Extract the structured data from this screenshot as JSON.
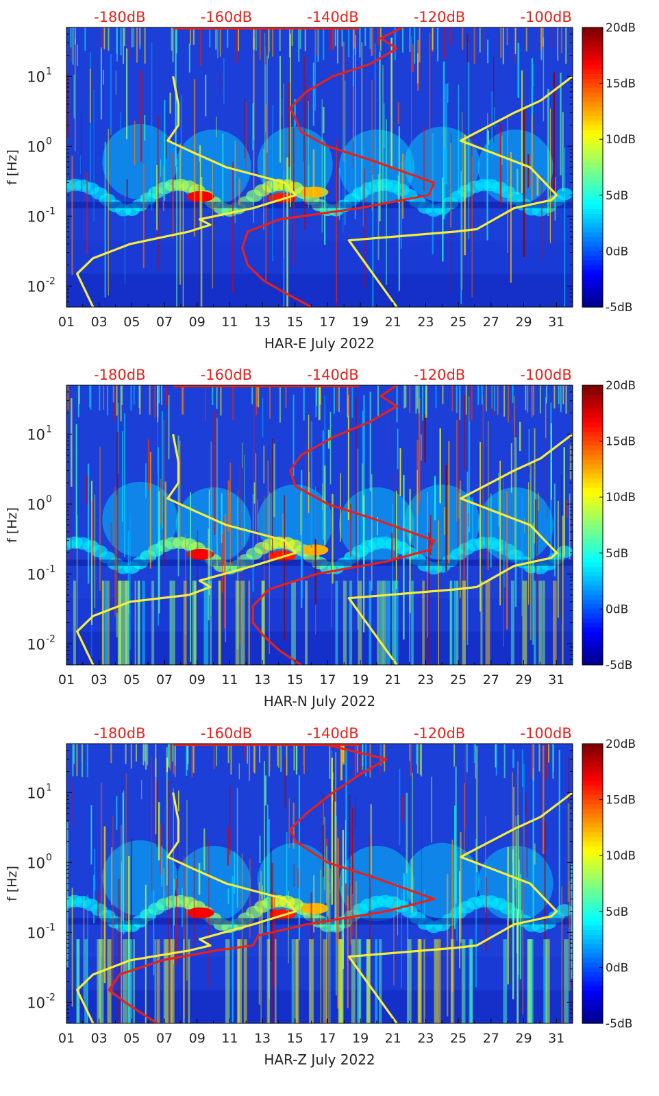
{
  "figure": {
    "colormap": "jet",
    "top_axis_color": "#e8201a",
    "noise_model_color": "#f5ee3a",
    "psd_curve_color": "#e8201a",
    "colorbar_ticks": [
      "20dB",
      "15dB",
      "10dB",
      "5dB",
      "0dB",
      "-5dB"
    ],
    "colorbar_range_db": [
      -5,
      20
    ],
    "x_ticks": [
      "01",
      "03",
      "05",
      "07",
      "09",
      "11",
      "13",
      "15",
      "17",
      "19",
      "21",
      "23",
      "25",
      "27",
      "29",
      "31"
    ],
    "top_ticks": [
      "-180dB",
      "-160dB",
      "-140dB",
      "-120dB",
      "-100dB"
    ],
    "y_ticks": [
      "10",
      "10",
      "10",
      "10"
    ],
    "y_tick_exponents": [
      "1",
      "0",
      "-1",
      "-2"
    ],
    "ylabel": "f [Hz]"
  },
  "chart_data": [
    {
      "type": "heatmap",
      "xlabel": "HAR-E July 2022",
      "ylabel": "f [Hz]",
      "x_range_days": [
        1,
        32
      ],
      "y_range_hz": [
        0.005,
        50
      ],
      "y_scale": "log",
      "top_axis_range_db": [
        -190,
        -95
      ],
      "color_scale_db": [
        -5,
        20
      ],
      "series": [
        {
          "name": "",
          "color": "#f5ee3a",
          "points_db_hz": [
            [
              -185,
              0.005
            ],
            [
              -188,
              0.015
            ],
            [
              -185,
              0.025
            ],
            [
              -178,
              0.04
            ],
            [
              -167,
              0.06
            ],
            [
              -163,
              0.075
            ],
            [
              -165,
              0.09
            ],
            [
              -155,
              0.13
            ],
            [
              -147,
              0.2
            ],
            [
              -149,
              0.3
            ],
            [
              -160,
              0.5
            ],
            [
              -166,
              0.8
            ],
            [
              -171,
              1.2
            ],
            [
              -169,
              2
            ],
            [
              -169,
              4
            ],
            [
              -170,
              10
            ]
          ]
        },
        {
          "name": "",
          "color": "#f5ee3a",
          "points_db_hz": [
            [
              -128,
              0.005
            ],
            [
              -137,
              0.045
            ],
            [
              -117,
              0.06
            ],
            [
              -113,
              0.065
            ],
            [
              -106,
              0.13
            ],
            [
              -99,
              0.17
            ],
            [
              -98,
              0.2
            ],
            [
              -103,
              0.5
            ],
            [
              -116,
              1.2
            ],
            [
              -106,
              3
            ],
            [
              -101,
              4.5
            ],
            [
              -95,
              10
            ]
          ]
        },
        {
          "name": "",
          "color": "#e8201a",
          "points_db_hz": [
            [
              -144,
              0.005
            ],
            [
              -149,
              0.008
            ],
            [
              -153,
              0.012
            ],
            [
              -156,
              0.02
            ],
            [
              -157,
              0.035
            ],
            [
              -156,
              0.06
            ],
            [
              -150,
              0.09
            ],
            [
              -135,
              0.13
            ],
            [
              -122,
              0.2
            ],
            [
              -121,
              0.3
            ],
            [
              -132,
              0.6
            ],
            [
              -141,
              1
            ],
            [
              -146,
              1.6
            ],
            [
              -147,
              2.5
            ],
            [
              -148,
              3.5
            ],
            [
              -145,
              6
            ],
            [
              -140,
              10
            ],
            [
              -133,
              15
            ],
            [
              -128,
              25
            ],
            [
              -131,
              35
            ],
            [
              -127,
              50
            ]
          ]
        }
      ]
    },
    {
      "type": "heatmap",
      "xlabel": "HAR-N July 2022",
      "ylabel": "f [Hz]",
      "x_range_days": [
        1,
        32
      ],
      "y_range_hz": [
        0.005,
        50
      ],
      "y_scale": "log",
      "top_axis_range_db": [
        -190,
        -95
      ],
      "color_scale_db": [
        -5,
        20
      ],
      "series": [
        {
          "name": "",
          "color": "#f5ee3a",
          "points_db_hz": [
            [
              -185,
              0.005
            ],
            [
              -188,
              0.015
            ],
            [
              -185,
              0.025
            ],
            [
              -178,
              0.04
            ],
            [
              -167,
              0.05
            ],
            [
              -163,
              0.065
            ],
            [
              -165,
              0.08
            ],
            [
              -155,
              0.13
            ],
            [
              -147,
              0.2
            ],
            [
              -149,
              0.3
            ],
            [
              -160,
              0.5
            ],
            [
              -166,
              0.8
            ],
            [
              -171,
              1.2
            ],
            [
              -169,
              2
            ],
            [
              -169,
              4
            ],
            [
              -170,
              10
            ]
          ]
        },
        {
          "name": "",
          "color": "#f5ee3a",
          "points_db_hz": [
            [
              -128,
              0.005
            ],
            [
              -137,
              0.045
            ],
            [
              -117,
              0.06
            ],
            [
              -113,
              0.065
            ],
            [
              -106,
              0.13
            ],
            [
              -99,
              0.17
            ],
            [
              -98,
              0.2
            ],
            [
              -103,
              0.5
            ],
            [
              -116,
              1.2
            ],
            [
              -106,
              3
            ],
            [
              -101,
              4.5
            ],
            [
              -95,
              10
            ]
          ]
        },
        {
          "name": "",
          "color": "#e8201a",
          "points_db_hz": [
            [
              -146,
              0.005
            ],
            [
              -150,
              0.008
            ],
            [
              -153,
              0.013
            ],
            [
              -155,
              0.02
            ],
            [
              -155,
              0.035
            ],
            [
              -152,
              0.06
            ],
            [
              -143,
              0.1
            ],
            [
              -130,
              0.15
            ],
            [
              -122,
              0.22
            ],
            [
              -121,
              0.3
            ],
            [
              -132,
              0.6
            ],
            [
              -141,
              1
            ],
            [
              -147,
              1.8
            ],
            [
              -148,
              3
            ],
            [
              -146,
              5
            ],
            [
              -140,
              9
            ],
            [
              -133,
              15
            ],
            [
              -128,
              25
            ],
            [
              -131,
              35
            ],
            [
              -128,
              50
            ]
          ]
        }
      ]
    },
    {
      "type": "heatmap",
      "xlabel": "HAR-Z July 2022",
      "ylabel": "f [Hz]",
      "x_range_days": [
        1,
        32
      ],
      "y_range_hz": [
        0.005,
        50
      ],
      "y_scale": "log",
      "top_axis_range_db": [
        -190,
        -95
      ],
      "color_scale_db": [
        -5,
        20
      ],
      "series": [
        {
          "name": "",
          "color": "#f5ee3a",
          "points_db_hz": [
            [
              -185,
              0.005
            ],
            [
              -188,
              0.015
            ],
            [
              -185,
              0.025
            ],
            [
              -178,
              0.04
            ],
            [
              -167,
              0.055
            ],
            [
              -163,
              0.065
            ],
            [
              -165,
              0.08
            ],
            [
              -155,
              0.13
            ],
            [
              -147,
              0.2
            ],
            [
              -149,
              0.3
            ],
            [
              -160,
              0.5
            ],
            [
              -166,
              0.8
            ],
            [
              -171,
              1.2
            ],
            [
              -169,
              2
            ],
            [
              -169,
              4
            ],
            [
              -170,
              10
            ]
          ]
        },
        {
          "name": "",
          "color": "#e8201a",
          "points_db_hz": [
            [
              -173,
              0.005
            ],
            [
              -179,
              0.01
            ],
            [
              -182,
              0.015
            ],
            [
              -180,
              0.025
            ],
            [
              -172,
              0.04
            ],
            [
              -162,
              0.055
            ],
            [
              -155,
              0.065
            ],
            [
              -154,
              0.09
            ],
            [
              -145,
              0.13
            ],
            [
              -130,
              0.2
            ],
            [
              -121,
              0.3
            ],
            [
              -132,
              0.6
            ],
            [
              -141,
              1
            ],
            [
              -147,
              2
            ],
            [
              -148,
              3
            ],
            [
              -145,
              5
            ],
            [
              -140,
              10
            ],
            [
              -135,
              18
            ],
            [
              -130,
              30
            ],
            [
              -142,
              50
            ]
          ]
        },
        {
          "name": "",
          "color": "#f5ee3a",
          "points_db_hz": [
            [
              -128,
              0.005
            ],
            [
              -137,
              0.045
            ],
            [
              -117,
              0.06
            ],
            [
              -113,
              0.065
            ],
            [
              -106,
              0.13
            ],
            [
              -99,
              0.17
            ],
            [
              -98,
              0.2
            ],
            [
              -103,
              0.5
            ],
            [
              -116,
              1.2
            ],
            [
              -106,
              3
            ],
            [
              -101,
              4.5
            ],
            [
              -95,
              10
            ]
          ]
        }
      ]
    }
  ]
}
